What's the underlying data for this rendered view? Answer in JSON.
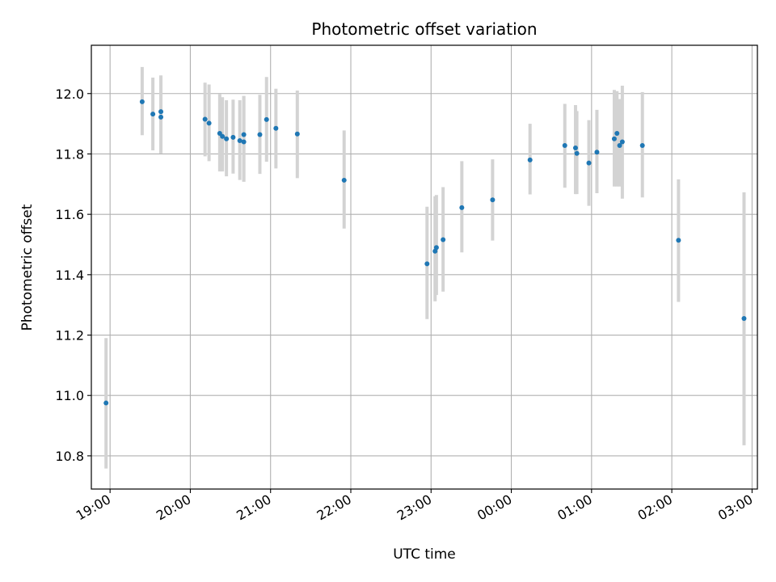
{
  "chart_data": {
    "type": "scatter",
    "title": "Photometric offset variation",
    "xlabel": "UTC time",
    "ylabel": "Photometric offset",
    "x_unit": "UTC time (hh:mm), continuing past midnight",
    "xlim": [
      "18:46",
      "03:04"
    ],
    "ylim": [
      10.69,
      12.16
    ],
    "x_ticks": [
      "19:00",
      "20:00",
      "21:00",
      "22:00",
      "23:00",
      "00:00",
      "01:00",
      "02:00",
      "03:00"
    ],
    "y_ticks": [
      "10.8",
      "11.0",
      "11.2",
      "11.4",
      "11.6",
      "11.8",
      "12.0"
    ],
    "grid": true,
    "colors": {
      "point": "#1f77b4",
      "errorbar": "#d3d3d3",
      "grid": "#b0b0b0",
      "axes": "#000000"
    },
    "series": [
      {
        "x": [
          "18:57",
          "19:24",
          "19:32",
          "19:38",
          "19:38",
          "20:11",
          "20:14",
          "20:22",
          "20:24",
          "20:27",
          "20:32",
          "20:37",
          "20:40",
          "20:40",
          "20:52",
          "20:57",
          "21:04",
          "21:20",
          "21:55",
          "22:57",
          "23:03",
          "23:04",
          "23:09",
          "23:23",
          "23:46",
          "00:14",
          "00:40",
          "00:48",
          "00:49",
          "00:58",
          "01:04",
          "01:17",
          "01:19",
          "01:21",
          "01:23",
          "01:38",
          "02:05",
          "02:54"
        ],
        "y": [
          10.975,
          11.973,
          11.932,
          11.922,
          11.94,
          11.915,
          11.902,
          11.868,
          11.858,
          11.85,
          11.855,
          11.844,
          11.864,
          11.84,
          11.864,
          11.914,
          11.885,
          11.866,
          11.713,
          11.436,
          11.478,
          11.49,
          11.516,
          11.622,
          11.648,
          11.78,
          11.828,
          11.82,
          11.802,
          11.77,
          11.806,
          11.85,
          11.868,
          11.828,
          11.84,
          11.828,
          11.514,
          11.255
        ],
        "yerr_low": [
          10.758,
          11.862,
          11.812,
          11.802,
          11.802,
          11.792,
          11.776,
          11.742,
          11.742,
          11.726,
          11.735,
          11.714,
          11.708,
          11.708,
          11.734,
          11.774,
          11.752,
          11.72,
          11.553,
          11.253,
          11.312,
          11.333,
          11.344,
          11.474,
          11.513,
          11.666,
          11.688,
          11.667,
          11.667,
          11.628,
          11.67,
          11.692,
          11.692,
          11.692,
          11.652,
          11.656,
          11.31,
          10.835
        ],
        "yerr_high": [
          11.19,
          12.088,
          12.053,
          12.06,
          12.06,
          12.036,
          12.03,
          11.998,
          11.988,
          11.978,
          11.98,
          11.978,
          11.992,
          11.992,
          11.996,
          12.055,
          12.016,
          12.01,
          11.878,
          11.625,
          11.66,
          11.664,
          11.69,
          11.776,
          11.782,
          11.9,
          11.966,
          11.962,
          11.942,
          11.912,
          11.946,
          12.012,
          12.008,
          11.982,
          12.026,
          12.005,
          11.716,
          11.673
        ]
      }
    ]
  }
}
